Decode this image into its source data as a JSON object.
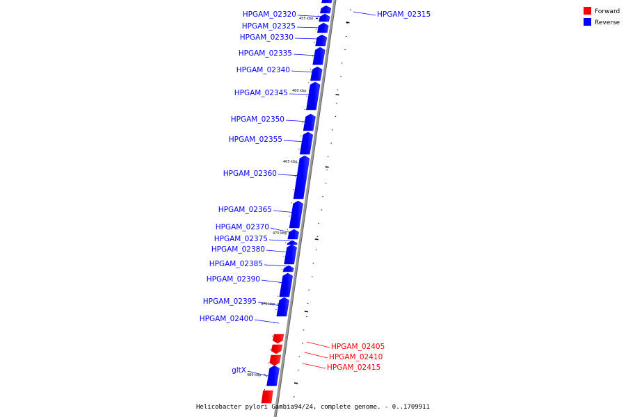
{
  "legend": [
    {
      "label": "Forward",
      "color": "#ff0000"
    },
    {
      "label": "Reverse",
      "color": "#0000ff"
    }
  ],
  "caption": "Helicobacter pylori Gambia94/24, complete genome. - 0..1709911",
  "ticks": [
    "455 kbp",
    "460 kbp",
    "465 kbp",
    "470 kbp",
    "475 kbp",
    "480 kbp"
  ],
  "genes": [
    {
      "id": "HPGAM_02315",
      "strand": "reverse"
    },
    {
      "id": "HPGAM_02320",
      "strand": "reverse"
    },
    {
      "id": "HPGAM_02325",
      "strand": "reverse"
    },
    {
      "id": "HPGAM_02330",
      "strand": "reverse"
    },
    {
      "id": "HPGAM_02335",
      "strand": "reverse"
    },
    {
      "id": "HPGAM_02340",
      "strand": "reverse"
    },
    {
      "id": "HPGAM_02345",
      "strand": "reverse"
    },
    {
      "id": "HPGAM_02350",
      "strand": "reverse"
    },
    {
      "id": "HPGAM_02355",
      "strand": "reverse"
    },
    {
      "id": "HPGAM_02360",
      "strand": "reverse"
    },
    {
      "id": "HPGAM_02365",
      "strand": "reverse"
    },
    {
      "id": "HPGAM_02370",
      "strand": "reverse"
    },
    {
      "id": "HPGAM_02375",
      "strand": "reverse"
    },
    {
      "id": "HPGAM_02380",
      "strand": "reverse"
    },
    {
      "id": "HPGAM_02385",
      "strand": "reverse"
    },
    {
      "id": "HPGAM_02390",
      "strand": "reverse"
    },
    {
      "id": "HPGAM_02395",
      "strand": "reverse"
    },
    {
      "id": "HPGAM_02400",
      "strand": "reverse"
    },
    {
      "id": "HPGAM_02405",
      "strand": "forward"
    },
    {
      "id": "HPGAM_02410",
      "strand": "forward"
    },
    {
      "id": "HPGAM_02415",
      "strand": "forward"
    },
    {
      "id": "gltX",
      "strand": "reverse"
    }
  ]
}
